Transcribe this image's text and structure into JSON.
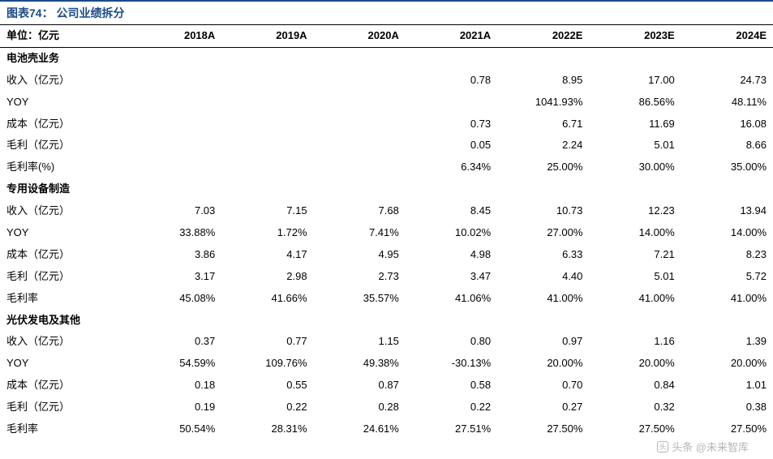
{
  "title": "图表74：  公司业绩拆分",
  "unit_label": "单位：亿元",
  "columns": [
    "2018A",
    "2019A",
    "2020A",
    "2021A",
    "2022E",
    "2023E",
    "2024E"
  ],
  "sections": [
    {
      "name": "电池壳业务",
      "rows": [
        {
          "label": "收入（亿元）",
          "values": [
            "",
            "",
            "",
            "0.78",
            "8.95",
            "17.00",
            "24.73"
          ]
        },
        {
          "label": "YOY",
          "values": [
            "",
            "",
            "",
            "",
            "1041.93%",
            "86.56%",
            "48.11%"
          ]
        },
        {
          "label": "成本（亿元）",
          "values": [
            "",
            "",
            "",
            "0.73",
            "6.71",
            "11.69",
            "16.08"
          ]
        },
        {
          "label": "毛利（亿元）",
          "values": [
            "",
            "",
            "",
            "0.05",
            "2.24",
            "5.01",
            "8.66"
          ]
        },
        {
          "label": "毛利率(%)",
          "values": [
            "",
            "",
            "",
            "6.34%",
            "25.00%",
            "30.00%",
            "35.00%"
          ]
        }
      ]
    },
    {
      "name": "专用设备制造",
      "rows": [
        {
          "label": "收入（亿元）",
          "values": [
            "7.03",
            "7.15",
            "7.68",
            "8.45",
            "10.73",
            "12.23",
            "13.94"
          ]
        },
        {
          "label": "YOY",
          "values": [
            "33.88%",
            "1.72%",
            "7.41%",
            "10.02%",
            "27.00%",
            "14.00%",
            "14.00%"
          ]
        },
        {
          "label": "成本（亿元）",
          "values": [
            "3.86",
            "4.17",
            "4.95",
            "4.98",
            "6.33",
            "7.21",
            "8.23"
          ]
        },
        {
          "label": "毛利（亿元）",
          "values": [
            "3.17",
            "2.98",
            "2.73",
            "3.47",
            "4.40",
            "5.01",
            "5.72"
          ]
        },
        {
          "label": "毛利率",
          "values": [
            "45.08%",
            "41.66%",
            "35.57%",
            "41.06%",
            "41.00%",
            "41.00%",
            "41.00%"
          ]
        }
      ]
    },
    {
      "name": "光伏发电及其他",
      "rows": [
        {
          "label": "收入（亿元）",
          "values": [
            "0.37",
            "0.77",
            "1.15",
            "0.80",
            "0.97",
            "1.16",
            "1.39"
          ]
        },
        {
          "label": "YOY",
          "values": [
            "54.59%",
            "109.76%",
            "49.38%",
            "-30.13%",
            "20.00%",
            "20.00%",
            "20.00%"
          ]
        },
        {
          "label": "成本（亿元）",
          "values": [
            "0.18",
            "0.55",
            "0.87",
            "0.58",
            "0.70",
            "0.84",
            "1.01"
          ]
        },
        {
          "label": "毛利（亿元）",
          "values": [
            "0.19",
            "0.22",
            "0.28",
            "0.22",
            "0.27",
            "0.32",
            "0.38"
          ]
        },
        {
          "label": "毛利率",
          "values": [
            "50.54%",
            "28.31%",
            "24.61%",
            "27.51%",
            "27.50%",
            "27.50%",
            "27.50%"
          ]
        }
      ]
    }
  ],
  "watermark": "头条 @未来智库",
  "colors": {
    "title_color": "#1a4a8a",
    "border_line": "#000000",
    "top_border": "#1a4a8a",
    "text": "#000000",
    "background": "#ffffff"
  }
}
